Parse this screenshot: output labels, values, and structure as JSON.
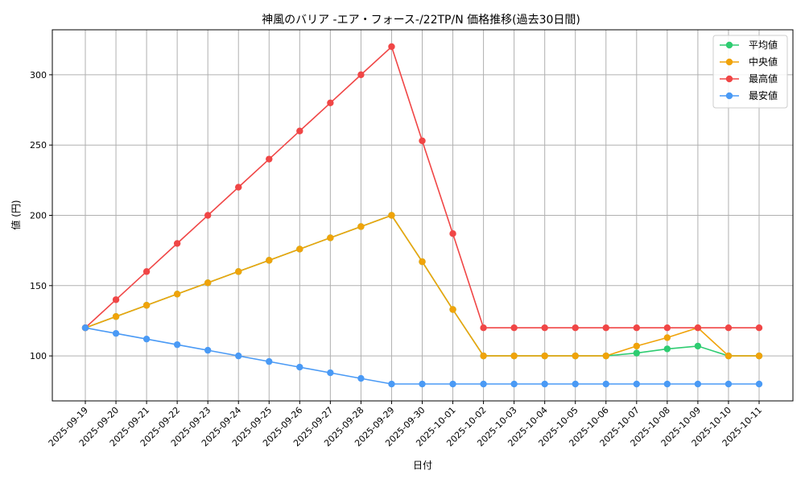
{
  "chart_data": {
    "type": "line",
    "title": "神風のバリア -エア・フォース-/22TP/N 価格推移(過去30日間)",
    "xlabel": "日付",
    "ylabel": "値 (円)",
    "ylim": [
      68,
      332
    ],
    "yticks": [
      100,
      150,
      200,
      250,
      300
    ],
    "grid": true,
    "legend_position": "top-right",
    "categories": [
      "2025-09-19",
      "2025-09-20",
      "2025-09-21",
      "2025-09-22",
      "2025-09-23",
      "2025-09-24",
      "2025-09-25",
      "2025-09-26",
      "2025-09-27",
      "2025-09-28",
      "2025-09-29",
      "2025-09-30",
      "2025-10-01",
      "2025-10-02",
      "2025-10-03",
      "2025-10-04",
      "2025-10-05",
      "2025-10-06",
      "2025-10-07",
      "2025-10-08",
      "2025-10-09",
      "2025-10-10",
      "2025-10-11"
    ],
    "series": [
      {
        "name": "平均値",
        "color": "#2ecc71",
        "values": [
          120,
          128,
          136,
          144,
          152,
          160,
          168,
          176,
          184,
          192,
          200,
          167,
          133,
          100,
          100,
          100,
          100,
          100,
          102,
          105,
          107,
          100,
          100
        ]
      },
      {
        "name": "中央値",
        "color": "#f0a30a",
        "values": [
          120,
          128,
          136,
          144,
          152,
          160,
          168,
          176,
          184,
          192,
          200,
          167,
          133,
          100,
          100,
          100,
          100,
          100,
          107,
          113,
          120,
          100,
          100
        ]
      },
      {
        "name": "最高値",
        "color": "#f04646",
        "values": [
          120,
          140,
          160,
          180,
          200,
          220,
          240,
          260,
          280,
          300,
          320,
          253,
          187,
          120,
          120,
          120,
          120,
          120,
          120,
          120,
          120,
          120,
          120
        ]
      },
      {
        "name": "最安値",
        "color": "#4a9af5",
        "values": [
          120,
          116,
          112,
          108,
          104,
          100,
          96,
          92,
          88,
          84,
          80,
          80,
          80,
          80,
          80,
          80,
          80,
          80,
          80,
          80,
          80,
          80,
          80
        ]
      }
    ]
  }
}
